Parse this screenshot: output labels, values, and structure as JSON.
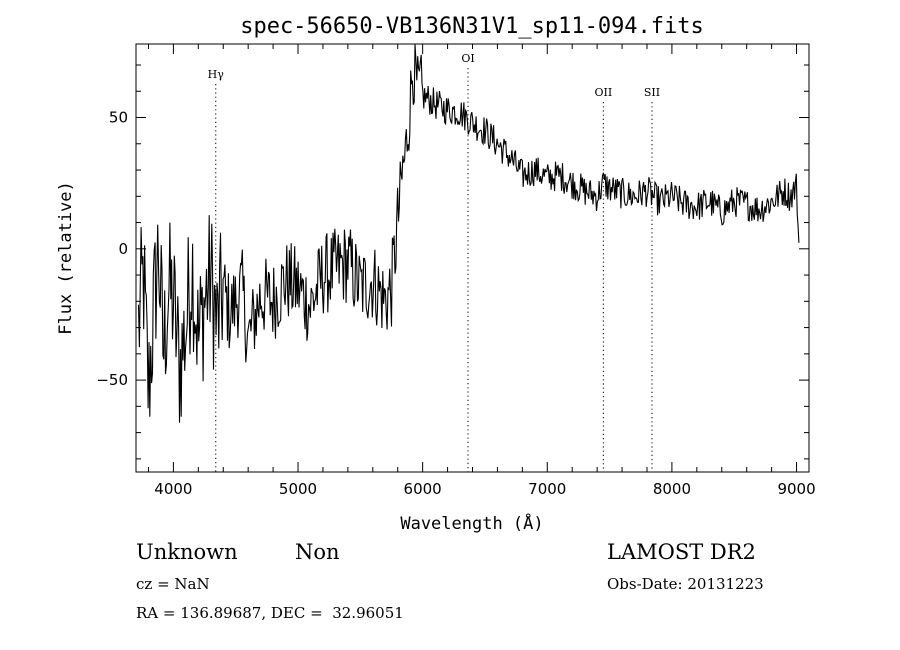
{
  "chart_data": {
    "type": "line",
    "title": "spec-56650-VB136N31V1_sp11-094.fits",
    "xlabel": "Wavelength (Å)",
    "ylabel": "Flux (relative)",
    "xlim": [
      3700,
      9100
    ],
    "ylim": [
      -85,
      78
    ],
    "xticks": [
      4000,
      5000,
      6000,
      7000,
      8000,
      9000
    ],
    "yticks": [
      -50,
      0,
      50
    ],
    "grid": false,
    "line_color": "#000000",
    "lines": [
      {
        "name": "Hγ",
        "x": 4340
      },
      {
        "name": "OI",
        "x": 6364
      },
      {
        "name": "OII",
        "x": 7450
      },
      {
        "name": "SII",
        "x": 7840
      }
    ],
    "series": [
      {
        "x": [
          3720,
          3760,
          3800,
          3840,
          3880,
          3920,
          3960,
          4000,
          4050,
          4100,
          4150,
          4200,
          4250,
          4300,
          4350,
          4400,
          4450,
          4500,
          4550,
          4600,
          4700,
          4800,
          4900,
          5000,
          5100,
          5200,
          5300,
          5400,
          5500,
          5600,
          5700,
          5750,
          5780,
          5800,
          5820,
          5840,
          5860,
          5880,
          5900,
          5920,
          5940,
          5960,
          5980,
          6000,
          6050,
          6100,
          6200,
          6300,
          6400,
          6500,
          6600,
          6700,
          6800,
          6900,
          7000,
          7100,
          7200,
          7300,
          7400,
          7450,
          7500,
          7600,
          7700,
          7800,
          7900,
          8000,
          8100,
          8200,
          8300,
          8400,
          8500,
          8600,
          8700,
          8800,
          8900,
          8950,
          9000,
          9020
        ],
        "values": [
          -30,
          -10,
          -55,
          -25,
          0,
          -40,
          -15,
          -20,
          -45,
          -30,
          -5,
          -35,
          -20,
          -10,
          -30,
          -15,
          -25,
          -20,
          -15,
          -35,
          -18,
          -20,
          -12,
          -15,
          -22,
          -10,
          -8,
          -5,
          -15,
          -12,
          -20,
          -15,
          0,
          10,
          20,
          30,
          35,
          45,
          55,
          70,
          65,
          60,
          62,
          58,
          57,
          55,
          53,
          52,
          48,
          45,
          40,
          35,
          28,
          30,
          27,
          28,
          25,
          22,
          20,
          25,
          23,
          21,
          20,
          22,
          18,
          20,
          17,
          16,
          18,
          14,
          18,
          17,
          15,
          18,
          22,
          20,
          24,
          0
        ]
      }
    ]
  },
  "info": {
    "class_name": "Unknown",
    "subclass_name": "Non",
    "survey": "LAMOST DR2",
    "cz": "cz = NaN",
    "obs_date": "Obs-Date: 20131223",
    "coords": "RA = 136.89687, DEC =  32.96051"
  }
}
